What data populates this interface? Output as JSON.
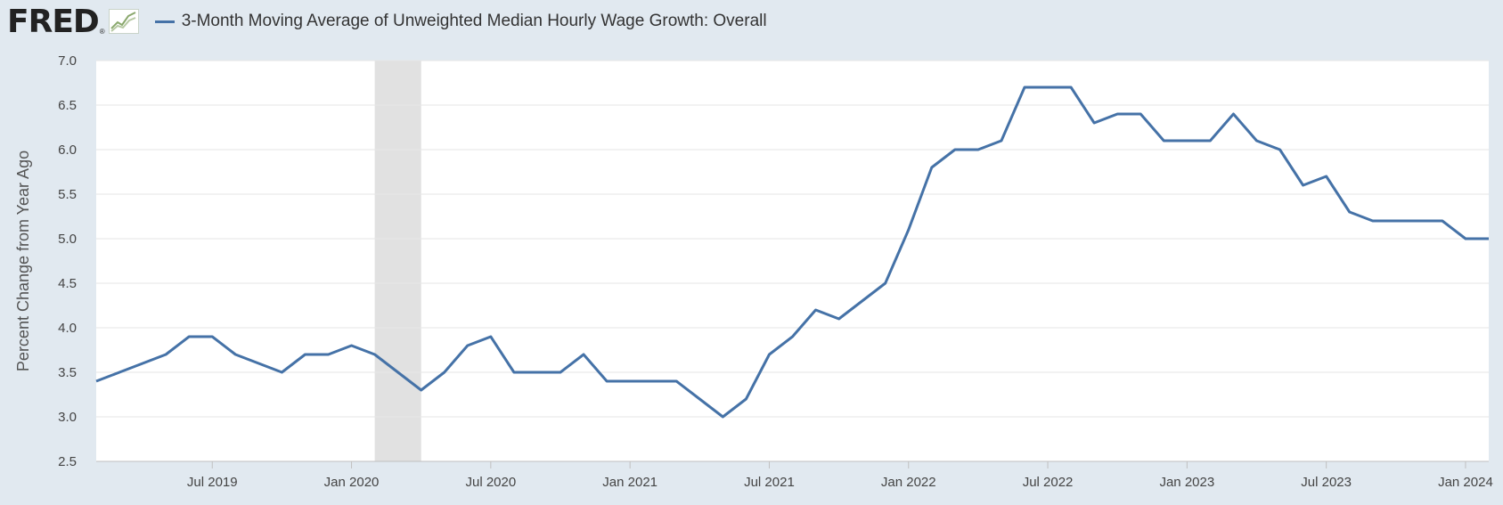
{
  "header": {
    "logo_text": "FRED",
    "logo_reg": "®",
    "legend_label": "3-Month Moving Average of Unweighted Median Hourly Wage Growth: Overall"
  },
  "colors": {
    "series": "#4572a7",
    "recession": "#e1e1e1",
    "background": "#e1e9f0",
    "plot": "#ffffff",
    "grid": "#e6e6e6"
  },
  "chart_data": {
    "type": "line",
    "title": "3-Month Moving Average of Unweighted Median Hourly Wage Growth: Overall",
    "xlabel": "",
    "ylabel": "Percent Change from Year Ago",
    "ylim": [
      2.5,
      7.0
    ],
    "yticks": [
      "2.5",
      "3.0",
      "3.5",
      "4.0",
      "4.5",
      "5.0",
      "5.5",
      "6.0",
      "6.5",
      "7.0"
    ],
    "xticks": [
      {
        "label": "Jul 2019",
        "index": 5
      },
      {
        "label": "Jan 2020",
        "index": 11
      },
      {
        "label": "Jul 2020",
        "index": 17
      },
      {
        "label": "Jan 2021",
        "index": 23
      },
      {
        "label": "Jul 2021",
        "index": 29
      },
      {
        "label": "Jan 2022",
        "index": 35
      },
      {
        "label": "Jul 2022",
        "index": 41
      },
      {
        "label": "Jan 2023",
        "index": 47
      },
      {
        "label": "Jul 2023",
        "index": 53
      },
      {
        "label": "Jan 2024",
        "index": 59
      }
    ],
    "x_range": [
      0,
      60
    ],
    "recession": {
      "start_index": 12,
      "end_index": 14
    },
    "series": [
      {
        "name": "3-Month Moving Average of Unweighted Median Hourly Wage Growth: Overall",
        "start": "Feb 2019",
        "values": [
          3.4,
          3.5,
          3.6,
          3.7,
          3.9,
          3.9,
          3.7,
          3.6,
          3.5,
          3.7,
          3.7,
          3.8,
          3.7,
          3.5,
          3.3,
          3.5,
          3.8,
          3.9,
          3.5,
          3.5,
          3.5,
          3.7,
          3.4,
          3.4,
          3.4,
          3.4,
          3.2,
          3.0,
          3.2,
          3.7,
          3.9,
          4.2,
          4.1,
          4.3,
          4.5,
          5.1,
          5.8,
          6.0,
          6.0,
          6.1,
          6.7,
          6.7,
          6.7,
          6.3,
          6.4,
          6.4,
          6.1,
          6.1,
          6.1,
          6.4,
          6.1,
          6.0,
          5.6,
          5.7,
          5.3,
          5.2,
          5.2,
          5.2,
          5.2,
          5.0,
          5.0
        ]
      }
    ]
  }
}
